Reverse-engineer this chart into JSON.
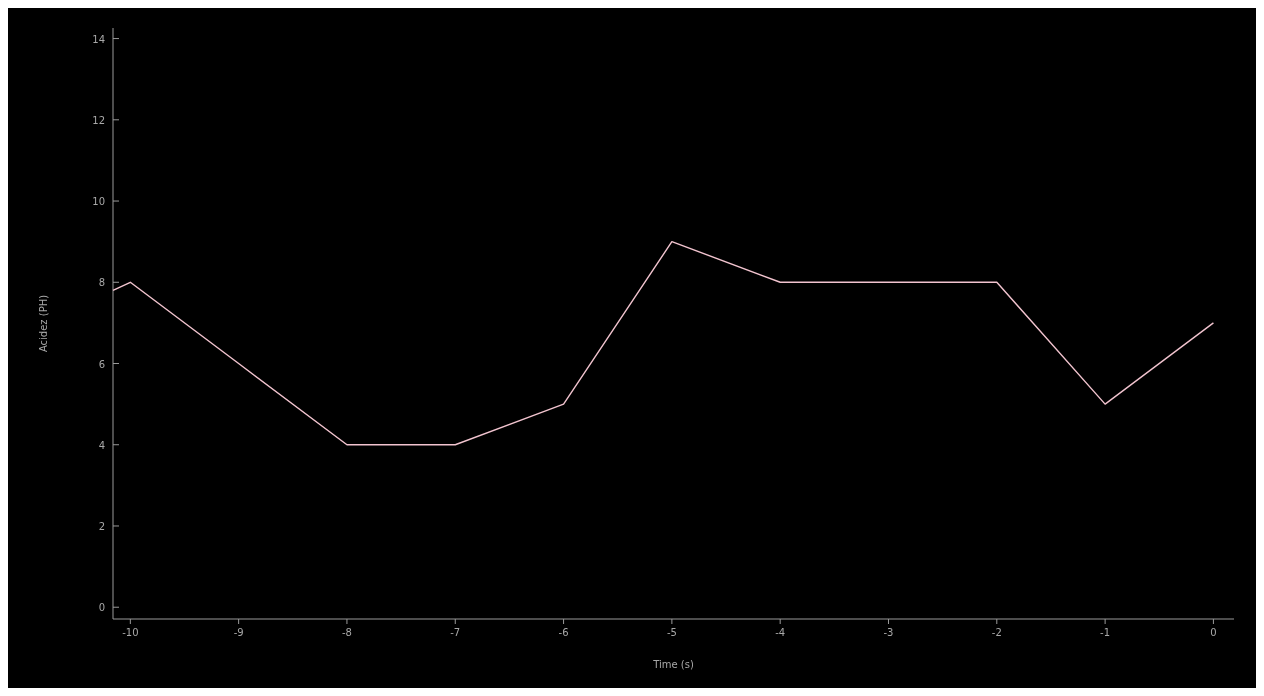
{
  "chart_data": {
    "type": "line",
    "xlabel": "Time (s)",
    "ylabel": "Acidez (PH)",
    "x": [
      -10.16,
      -10,
      -9,
      -8,
      -7,
      -6,
      -5,
      -4,
      -3,
      -2,
      -1,
      0
    ],
    "series": [
      {
        "color": "#f2c4cf",
        "values": [
          7.8,
          8,
          6,
          4,
          4,
          5,
          9,
          8,
          8,
          8,
          5,
          7
        ]
      }
    ],
    "xlim": [
      -10.16,
      0.19
    ],
    "xticks": [
      -10,
      -9,
      -8,
      -7,
      -6,
      -5,
      -4,
      -3,
      -2,
      -1,
      0
    ],
    "ylim": [
      -0.29,
      14.26
    ],
    "yticks": [
      0,
      2,
      4,
      6,
      8,
      10,
      12,
      14
    ],
    "grid": false,
    "marker": "none",
    "line_style": "solid"
  }
}
